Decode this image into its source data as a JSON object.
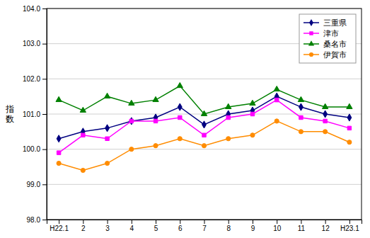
{
  "chart_data": {
    "type": "line",
    "y_label": "指\n数",
    "categories": [
      "H22.1",
      "2",
      "3",
      "4",
      "5",
      "6",
      "7",
      "8",
      "9",
      "10",
      "11",
      "12",
      "H23.1"
    ],
    "series": [
      {
        "name": "三重県",
        "color": "#000080",
        "marker": "diamond",
        "values": [
          100.3,
          100.5,
          100.6,
          100.8,
          100.9,
          101.2,
          100.7,
          101.0,
          101.1,
          101.5,
          101.2,
          101.0,
          100.9
        ]
      },
      {
        "name": "津市",
        "color": "#FF00FF",
        "marker": "square",
        "values": [
          99.9,
          100.4,
          100.3,
          100.8,
          100.8,
          100.9,
          100.4,
          100.9,
          101.0,
          101.4,
          100.9,
          100.8,
          100.6
        ]
      },
      {
        "name": "桑名市",
        "color": "#008000",
        "marker": "triangle",
        "values": [
          101.4,
          101.1,
          101.5,
          101.3,
          101.4,
          101.8,
          101.0,
          101.2,
          101.3,
          101.7,
          101.4,
          101.2,
          101.2
        ]
      },
      {
        "name": "伊賀市",
        "color": "#FF8C00",
        "marker": "circle",
        "values": [
          99.6,
          99.4,
          99.6,
          100.0,
          100.1,
          100.3,
          100.1,
          100.3,
          100.4,
          100.8,
          100.5,
          100.5,
          100.2
        ]
      }
    ],
    "ylim": [
      98.0,
      104.0
    ],
    "yticks": [
      {
        "value": 98.0,
        "label": "98.0"
      },
      {
        "value": 99.0,
        "label": "99.0"
      },
      {
        "value": 100.0,
        "label": "100.0"
      },
      {
        "value": 101.0,
        "label": "101.0"
      },
      {
        "value": 102.0,
        "label": "102.0"
      },
      {
        "value": 103.0,
        "label": "103.0"
      },
      {
        "value": 104.0,
        "label": "104.0"
      }
    ],
    "grid": true,
    "legend": "upper right"
  }
}
